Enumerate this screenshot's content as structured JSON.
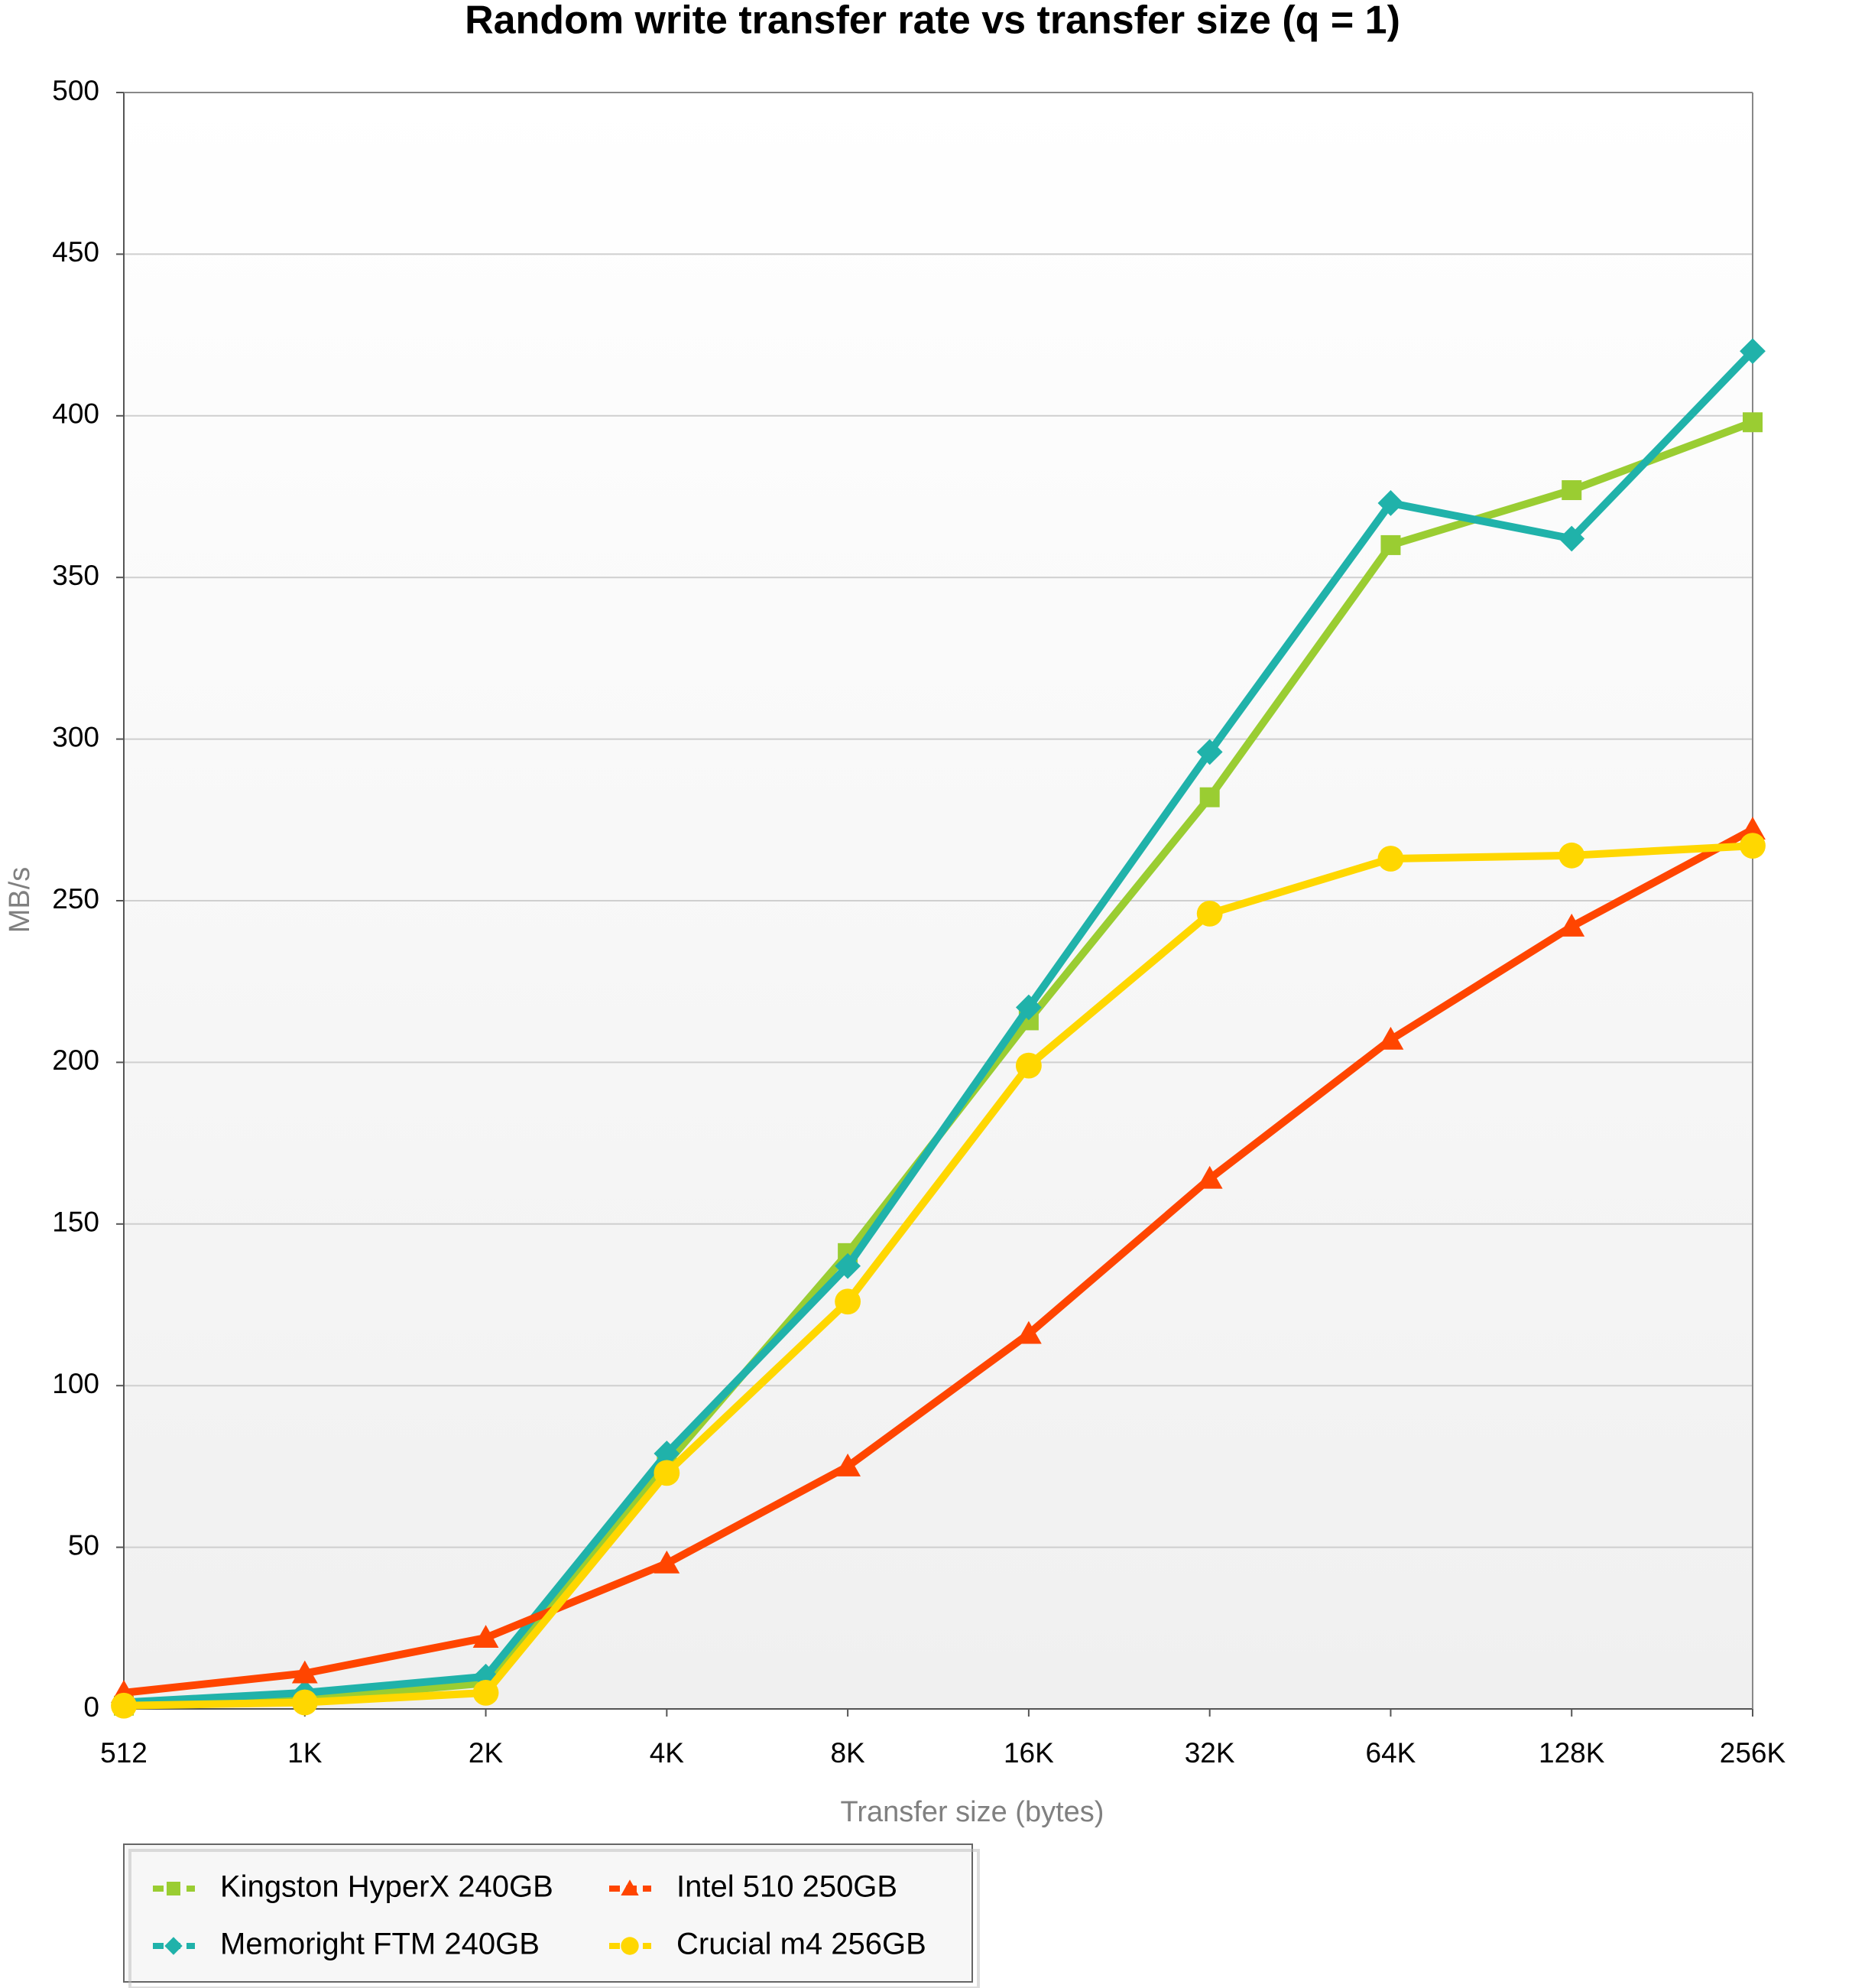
{
  "chart_data": {
    "type": "line",
    "title": "Random write transfer rate vs transfer size (q = 1)",
    "x_label": "Transfer size (bytes)",
    "y_label": "MB/s",
    "categories": [
      "512",
      "1K",
      "2K",
      "4K",
      "8K",
      "16K",
      "32K",
      "64K",
      "128K",
      "256K"
    ],
    "series": [
      {
        "name": "Kingston HyperX 240GB",
        "color": "#9acd32",
        "marker": "square",
        "values": [
          1,
          3,
          8,
          76,
          141,
          213,
          282,
          360,
          377,
          398
        ]
      },
      {
        "name": "Memoright FTM 240GB",
        "color": "#20b2aa",
        "marker": "diamond",
        "values": [
          2,
          5,
          10,
          79,
          137,
          217,
          296,
          373,
          362,
          420
        ]
      },
      {
        "name": "Intel 510 250GB",
        "color": "#ff4500",
        "marker": "triangle",
        "values": [
          5,
          11,
          22,
          45,
          75,
          116,
          164,
          207,
          242,
          272
        ]
      },
      {
        "name": "Crucial m4 256GB",
        "color": "#ffd700",
        "marker": "circle",
        "values": [
          1,
          2,
          5,
          73,
          126,
          199,
          246,
          263,
          264,
          267
        ]
      }
    ],
    "ylim": [
      0,
      500
    ],
    "yticks": [
      0,
      50,
      100,
      150,
      200,
      250,
      300,
      350,
      400,
      450,
      500
    ],
    "grid": true
  }
}
